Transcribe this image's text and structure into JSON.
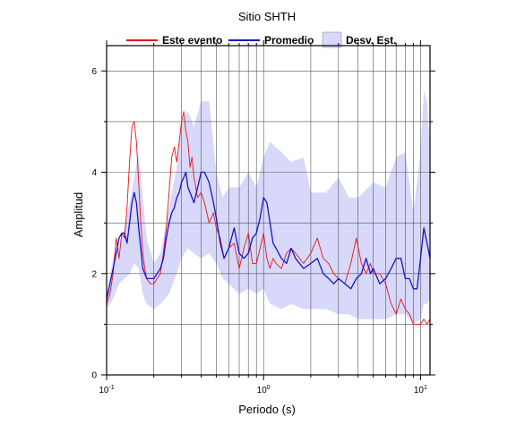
{
  "chart_data": {
    "type": "line",
    "title": "Sitio SHTH",
    "xlabel": "Periodo (s)",
    "ylabel": "Amplitud",
    "xscale": "log",
    "xlim": [
      0.1,
      11.5
    ],
    "ylim": [
      0,
      6.5
    ],
    "grid": true,
    "legend_position": "top",
    "x_ticks": [
      {
        "value": 0.1,
        "base": "10",
        "exp": "-1"
      },
      {
        "value": 1,
        "base": "10",
        "exp": "0"
      },
      {
        "value": 10,
        "base": "10",
        "exp": "1"
      }
    ],
    "y_ticks": [
      {
        "value": 0,
        "label": "0"
      },
      {
        "value": 2,
        "label": "2"
      },
      {
        "value": 4,
        "label": "4"
      },
      {
        "value": 6,
        "label": "6"
      }
    ],
    "colors": {
      "event": "#e8141c",
      "mean": "#1414c8",
      "band": "#d8d8fa"
    },
    "series": [
      {
        "name": "Este evento",
        "x": [
          0.1,
          0.105,
          0.11,
          0.115,
          0.12,
          0.125,
          0.13,
          0.135,
          0.14,
          0.145,
          0.15,
          0.155,
          0.16,
          0.165,
          0.17,
          0.175,
          0.18,
          0.19,
          0.2,
          0.21,
          0.22,
          0.23,
          0.24,
          0.25,
          0.26,
          0.27,
          0.28,
          0.29,
          0.3,
          0.31,
          0.32,
          0.33,
          0.34,
          0.35,
          0.36,
          0.38,
          0.4,
          0.42,
          0.45,
          0.48,
          0.5,
          0.53,
          0.56,
          0.6,
          0.65,
          0.7,
          0.75,
          0.8,
          0.85,
          0.9,
          0.95,
          1.0,
          1.05,
          1.1,
          1.15,
          1.2,
          1.3,
          1.4,
          1.5,
          1.6,
          1.8,
          2.0,
          2.2,
          2.4,
          2.6,
          2.8,
          3.0,
          3.3,
          3.6,
          3.9,
          4.2,
          4.5,
          4.8,
          5.0,
          5.5,
          6.0,
          6.5,
          7.0,
          7.5,
          8.0,
          8.5,
          9.0,
          9.5,
          10.0,
          10.5,
          11.0,
          11.5
        ],
        "y": [
          1.4,
          1.6,
          2.0,
          2.7,
          2.3,
          2.8,
          2.7,
          3.3,
          4.2,
          4.9,
          5.0,
          4.6,
          3.8,
          3.0,
          2.4,
          2.1,
          1.9,
          1.8,
          1.8,
          1.9,
          2.0,
          2.4,
          2.9,
          3.6,
          4.3,
          4.5,
          4.2,
          4.6,
          5.0,
          5.2,
          4.8,
          4.6,
          4.1,
          4.3,
          3.9,
          3.5,
          3.6,
          3.4,
          3.0,
          3.2,
          2.9,
          2.7,
          2.3,
          2.5,
          2.6,
          2.1,
          2.5,
          2.8,
          2.2,
          2.2,
          2.5,
          2.8,
          2.3,
          2.1,
          2.3,
          2.2,
          2.1,
          2.4,
          2.5,
          2.4,
          2.2,
          2.4,
          2.7,
          2.3,
          2.2,
          2.0,
          1.9,
          1.8,
          2.2,
          2.7,
          2.2,
          2.0,
          2.2,
          2.0,
          2.0,
          1.8,
          1.4,
          1.2,
          1.5,
          1.3,
          1.2,
          1.0,
          1.0,
          1.0,
          1.1,
          1.0,
          1.1
        ]
      },
      {
        "name": "Promedio",
        "x": [
          0.1,
          0.105,
          0.11,
          0.115,
          0.12,
          0.125,
          0.13,
          0.135,
          0.14,
          0.145,
          0.15,
          0.155,
          0.16,
          0.165,
          0.17,
          0.175,
          0.18,
          0.19,
          0.2,
          0.21,
          0.22,
          0.23,
          0.24,
          0.25,
          0.26,
          0.27,
          0.28,
          0.29,
          0.3,
          0.31,
          0.32,
          0.33,
          0.34,
          0.35,
          0.36,
          0.38,
          0.4,
          0.42,
          0.45,
          0.48,
          0.5,
          0.53,
          0.56,
          0.6,
          0.65,
          0.7,
          0.75,
          0.8,
          0.85,
          0.9,
          0.95,
          1.0,
          1.05,
          1.1,
          1.15,
          1.2,
          1.3,
          1.4,
          1.5,
          1.6,
          1.8,
          2.0,
          2.2,
          2.4,
          2.6,
          2.8,
          3.0,
          3.3,
          3.6,
          3.9,
          4.2,
          4.5,
          4.8,
          5.0,
          5.5,
          6.0,
          6.5,
          7.0,
          7.5,
          8.0,
          8.5,
          9.0,
          9.5,
          10.0,
          10.5,
          11.0,
          11.5
        ],
        "y": [
          1.5,
          1.8,
          2.1,
          2.4,
          2.7,
          2.8,
          2.8,
          2.6,
          3.0,
          3.4,
          3.6,
          3.4,
          2.9,
          2.5,
          2.1,
          2.0,
          1.9,
          1.9,
          1.9,
          2.0,
          2.1,
          2.3,
          2.7,
          3.0,
          3.2,
          3.3,
          3.5,
          3.6,
          3.8,
          3.9,
          4.0,
          3.7,
          3.6,
          3.5,
          3.4,
          3.7,
          4.0,
          4.0,
          3.8,
          3.4,
          3.1,
          2.6,
          2.3,
          2.5,
          2.9,
          2.4,
          2.3,
          2.4,
          2.7,
          2.8,
          3.1,
          3.5,
          3.4,
          3.0,
          2.6,
          2.5,
          2.3,
          2.2,
          2.5,
          2.3,
          2.1,
          2.2,
          2.3,
          2.0,
          1.9,
          1.8,
          1.9,
          1.8,
          1.7,
          1.9,
          2.0,
          2.3,
          2.0,
          2.1,
          1.8,
          1.9,
          2.1,
          2.3,
          2.3,
          1.9,
          1.9,
          1.7,
          1.7,
          2.3,
          2.9,
          2.6,
          2.3
        ]
      }
    ],
    "band": {
      "name": "Desv. Est.",
      "x": [
        0.1,
        0.11,
        0.12,
        0.13,
        0.14,
        0.15,
        0.16,
        0.17,
        0.18,
        0.2,
        0.22,
        0.25,
        0.28,
        0.3,
        0.33,
        0.36,
        0.4,
        0.45,
        0.5,
        0.55,
        0.6,
        0.7,
        0.8,
        0.9,
        1.0,
        1.1,
        1.3,
        1.5,
        1.8,
        2.0,
        2.5,
        3.0,
        3.5,
        4.0,
        5.0,
        6.0,
        7.0,
        8.0,
        9.0,
        10.0,
        10.5,
        11.0,
        11.5
      ],
      "lower": [
        1.3,
        1.5,
        1.8,
        1.9,
        2.0,
        2.2,
        2.1,
        1.6,
        1.4,
        1.3,
        1.4,
        1.6,
        2.0,
        2.3,
        2.5,
        2.4,
        2.3,
        2.4,
        2.2,
        1.9,
        1.8,
        1.6,
        1.7,
        1.6,
        1.7,
        1.4,
        1.3,
        1.4,
        1.3,
        1.3,
        1.3,
        1.2,
        1.2,
        1.1,
        1.1,
        1.1,
        1.2,
        1.2,
        1.0,
        1.1,
        1.4,
        1.4,
        1.5
      ],
      "upper": [
        1.6,
        2.3,
        2.6,
        2.9,
        3.4,
        3.9,
        4.4,
        3.5,
        2.7,
        2.2,
        2.4,
        3.3,
        4.1,
        5.0,
        5.2,
        4.9,
        5.4,
        5.4,
        4.0,
        3.5,
        3.7,
        3.7,
        4.0,
        3.7,
        4.3,
        4.6,
        4.4,
        4.2,
        4.3,
        3.6,
        3.6,
        3.9,
        3.5,
        3.5,
        3.8,
        3.7,
        4.3,
        4.4,
        3.2,
        4.4,
        5.6,
        5.4,
        4.5
      ]
    }
  }
}
